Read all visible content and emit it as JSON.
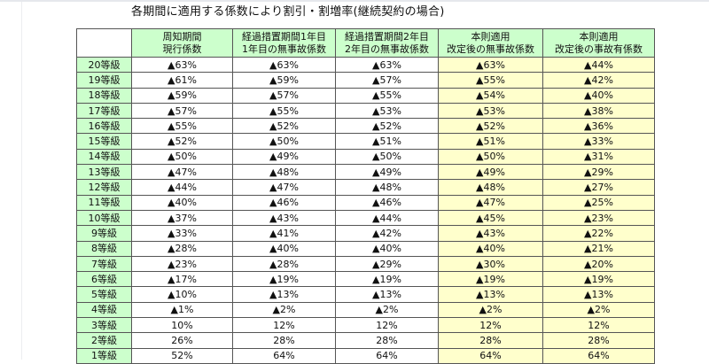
{
  "title": "各期間に適用する係数により割引・割増率(継続契約の場合)",
  "colors": {
    "header_green": "#ccffcc",
    "new_column_yellow": "#ffffcc",
    "border": "#555555"
  },
  "table": {
    "headers": [
      {
        "line1": "",
        "line2": ""
      },
      {
        "line1": "周知期間",
        "line2": "現行係数"
      },
      {
        "line1": "経過措置期間1年目",
        "line2": "1年目の無事故係数"
      },
      {
        "line1": "経過措置期間2年目",
        "line2": "2年目の無事故係数"
      },
      {
        "line1": "本則適用",
        "line2": "改定後の無事故係数"
      },
      {
        "line1": "本則適用",
        "line2": "改定後の事故有係数"
      }
    ],
    "rows": [
      {
        "grade": "20等級",
        "values": [
          "▲63%",
          "▲63%",
          "▲63%",
          "▲63%",
          "▲44%"
        ]
      },
      {
        "grade": "19等級",
        "values": [
          "▲61%",
          "▲59%",
          "▲57%",
          "▲55%",
          "▲42%"
        ]
      },
      {
        "grade": "18等級",
        "values": [
          "▲59%",
          "▲57%",
          "▲55%",
          "▲54%",
          "▲40%"
        ]
      },
      {
        "grade": "17等級",
        "values": [
          "▲57%",
          "▲55%",
          "▲53%",
          "▲53%",
          "▲38%"
        ]
      },
      {
        "grade": "16等級",
        "values": [
          "▲55%",
          "▲52%",
          "▲52%",
          "▲52%",
          "▲36%"
        ]
      },
      {
        "grade": "15等級",
        "values": [
          "▲52%",
          "▲50%",
          "▲51%",
          "▲51%",
          "▲33%"
        ]
      },
      {
        "grade": "14等級",
        "values": [
          "▲50%",
          "▲49%",
          "▲50%",
          "▲50%",
          "▲31%"
        ]
      },
      {
        "grade": "13等級",
        "values": [
          "▲47%",
          "▲48%",
          "▲49%",
          "▲49%",
          "▲29%"
        ]
      },
      {
        "grade": "12等級",
        "values": [
          "▲44%",
          "▲47%",
          "▲48%",
          "▲48%",
          "▲27%"
        ]
      },
      {
        "grade": "11等級",
        "values": [
          "▲40%",
          "▲46%",
          "▲46%",
          "▲47%",
          "▲25%"
        ]
      },
      {
        "grade": "10等級",
        "values": [
          "▲37%",
          "▲43%",
          "▲44%",
          "▲45%",
          "▲23%"
        ]
      },
      {
        "grade": "9等級",
        "values": [
          "▲33%",
          "▲41%",
          "▲42%",
          "▲43%",
          "▲22%"
        ]
      },
      {
        "grade": "8等級",
        "values": [
          "▲28%",
          "▲40%",
          "▲40%",
          "▲40%",
          "▲21%"
        ]
      },
      {
        "grade": "7等級",
        "values": [
          "▲23%",
          "▲28%",
          "▲29%",
          "▲30%",
          "▲20%"
        ]
      },
      {
        "grade": "6等級",
        "values": [
          "▲17%",
          "▲19%",
          "▲19%",
          "▲19%",
          "▲19%"
        ]
      },
      {
        "grade": "5等級",
        "values": [
          "▲10%",
          "▲13%",
          "▲13%",
          "▲13%",
          "▲13%"
        ]
      },
      {
        "grade": "4等級",
        "values": [
          "▲1%",
          "▲2%",
          "▲2%",
          "▲2%",
          "▲2%"
        ]
      },
      {
        "grade": "3等級",
        "values": [
          "10%",
          "12%",
          "12%",
          "12%",
          "12%"
        ]
      },
      {
        "grade": "2等級",
        "values": [
          "26%",
          "28%",
          "28%",
          "28%",
          "28%"
        ]
      },
      {
        "grade": "1等級",
        "values": [
          "52%",
          "64%",
          "64%",
          "64%",
          "64%"
        ]
      }
    ]
  }
}
